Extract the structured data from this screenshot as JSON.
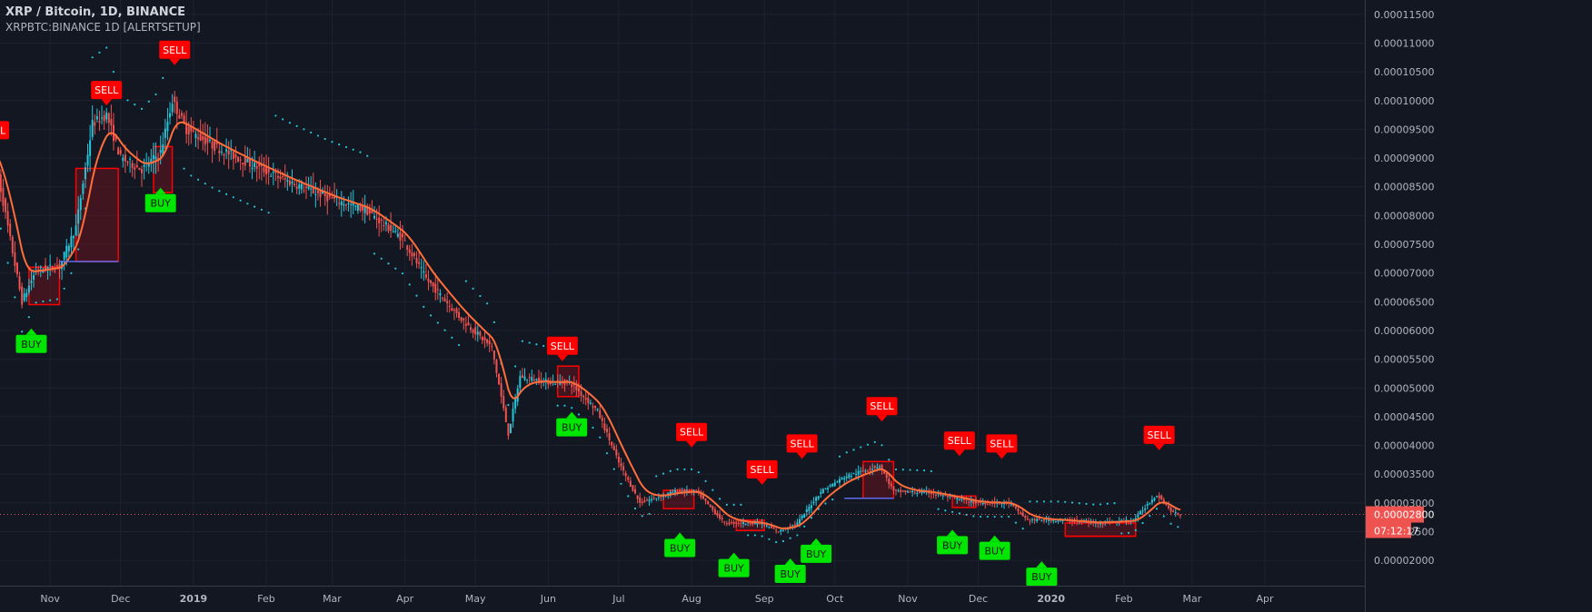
{
  "header": {
    "title": "XRP / Bitcoin, 1D, BINANCE",
    "indicator": "XRPBTC:BINANCE 1D [ALERTSETUP]"
  },
  "colors": {
    "background": "#131722",
    "grid": "#1e2230",
    "axis_text": "#b2b5be",
    "up": "#26c6da",
    "down": "#ef5350",
    "ma": "#ff6d3b",
    "ma_up": "#5b6cf0",
    "sar": "#26c6da",
    "buy": "#00e600",
    "sell": "#ff0000",
    "price_tag": "#ef5350"
  },
  "chart_data": {
    "type": "candlestick",
    "x_ticks": [
      "Nov",
      "Dec",
      "2019",
      "Feb",
      "Mar",
      "Apr",
      "May",
      "Jun",
      "Jul",
      "Aug",
      "Sep",
      "Oct",
      "Nov",
      "Dec",
      "2020",
      "Feb",
      "Mar",
      "Apr"
    ],
    "y_ticks": [
      "0.00011500",
      "0.00011000",
      "0.00010500",
      "0.00010000",
      "0.00009500",
      "0.00009000",
      "0.00008500",
      "0.00008000",
      "0.00007500",
      "0.00007000",
      "0.00006500",
      "0.00006000",
      "0.00005500",
      "0.00005000",
      "0.00004500",
      "0.00004000",
      "0.00003500",
      "0.00003000",
      "0.00002500",
      "0.00002000"
    ],
    "ylim": [
      1.56e-05,
      0.0001175
    ],
    "current_price": {
      "label": "0.00002800",
      "countdown": "07:12:17",
      "value": 2.8e-05
    },
    "trend": [
      [
        "2018-10-08",
        9.1e-05
      ],
      [
        "2018-10-20",
        6.5e-05
      ],
      [
        "2018-10-26",
        7.05e-05
      ],
      [
        "2018-11-05",
        7.12e-05
      ],
      [
        "2018-11-12",
        7.8e-05
      ],
      [
        "2018-11-19",
        9.6e-05
      ],
      [
        "2018-11-25",
        9.75e-05
      ],
      [
        "2018-12-01",
        9e-05
      ],
      [
        "2018-12-10",
        8.8e-05
      ],
      [
        "2018-12-18",
        9.1e-05
      ],
      [
        "2018-12-23",
        0.0001
      ],
      [
        "2018-12-29",
        9.5e-05
      ],
      [
        "2019-01-10",
        9.2e-05
      ],
      [
        "2019-01-25",
        8.9e-05
      ],
      [
        "2019-02-10",
        8.6e-05
      ],
      [
        "2019-02-28",
        8.3e-05
      ],
      [
        "2019-03-15",
        8.1e-05
      ],
      [
        "2019-03-31",
        7.6e-05
      ],
      [
        "2019-04-10",
        6.9e-05
      ],
      [
        "2019-04-25",
        6.2e-05
      ],
      [
        "2019-05-08",
        5.7e-05
      ],
      [
        "2019-05-15",
        4.2e-05
      ],
      [
        "2019-05-20",
        5.2e-05
      ],
      [
        "2019-06-01",
        5.1e-05
      ],
      [
        "2019-06-10",
        5.1e-05
      ],
      [
        "2019-06-22",
        4.6e-05
      ],
      [
        "2019-07-01",
        3.7e-05
      ],
      [
        "2019-07-10",
        3e-05
      ],
      [
        "2019-07-25",
        3.2e-05
      ],
      [
        "2019-08-03",
        3.2e-05
      ],
      [
        "2019-08-15",
        2.65e-05
      ],
      [
        "2019-08-30",
        2.65e-05
      ],
      [
        "2019-09-07",
        2.5e-05
      ],
      [
        "2019-09-15",
        2.65e-05
      ],
      [
        "2019-09-25",
        3.2e-05
      ],
      [
        "2019-10-05",
        3.45e-05
      ],
      [
        "2019-10-20",
        3.65e-05
      ],
      [
        "2019-10-26",
        3.2e-05
      ],
      [
        "2019-11-10",
        3.18e-05
      ],
      [
        "2019-11-30",
        3e-05
      ],
      [
        "2019-12-14",
        3e-05
      ],
      [
        "2019-12-22",
        2.7e-05
      ],
      [
        "2020-01-05",
        2.7e-05
      ],
      [
        "2020-01-20",
        2.65e-05
      ],
      [
        "2020-02-05",
        2.7e-05
      ],
      [
        "2020-02-15",
        3.15e-05
      ],
      [
        "2020-02-22",
        2.82e-05
      ],
      [
        "2020-02-25",
        2.8e-05
      ]
    ],
    "signals": [
      {
        "type": "SELL",
        "label": "SELL",
        "date": "2018-10-08",
        "price": 9.2e-05
      },
      {
        "type": "BUY",
        "label": "BUY",
        "date": "2018-10-24",
        "price": 6.05e-05
      },
      {
        "type": "SELL",
        "label": "SELL",
        "date": "2018-11-25",
        "price": 9.9e-05
      },
      {
        "type": "BUY",
        "label": "BUY",
        "date": "2018-12-18",
        "price": 8.5e-05
      },
      {
        "type": "SELL",
        "label": "SELL",
        "date": "2018-12-24",
        "price": 0.000106
      },
      {
        "type": "SELL",
        "label": "SELL",
        "date": "2019-06-07",
        "price": 5.45e-05
      },
      {
        "type": "BUY",
        "label": "BUY",
        "date": "2019-06-11",
        "price": 4.6e-05
      },
      {
        "type": "SELL",
        "label": "SELL",
        "date": "2019-08-01",
        "price": 3.95e-05
      },
      {
        "type": "BUY",
        "label": "BUY",
        "date": "2019-07-27",
        "price": 2.5e-05
      },
      {
        "type": "BUY",
        "label": "BUY",
        "date": "2019-08-19",
        "price": 2.15e-05
      },
      {
        "type": "SELL",
        "label": "SELL",
        "date": "2019-08-31",
        "price": 3.3e-05
      },
      {
        "type": "BUY",
        "label": "BUY",
        "date": "2019-09-12",
        "price": 2.05e-05
      },
      {
        "type": "SELL",
        "label": "SELL",
        "date": "2019-09-17",
        "price": 3.75e-05
      },
      {
        "type": "BUY",
        "label": "BUY",
        "date": "2019-09-23",
        "price": 2.4e-05
      },
      {
        "type": "SELL",
        "label": "SELL",
        "date": "2019-10-21",
        "price": 4.4e-05
      },
      {
        "type": "BUY",
        "label": "BUY",
        "date": "2019-11-20",
        "price": 2.55e-05
      },
      {
        "type": "SELL",
        "label": "SELL",
        "date": "2019-11-23",
        "price": 3.8e-05
      },
      {
        "type": "BUY",
        "label": "BUY",
        "date": "2019-12-08",
        "price": 2.45e-05
      },
      {
        "type": "SELL",
        "label": "SELL",
        "date": "2019-12-11",
        "price": 3.75e-05
      },
      {
        "type": "BUY",
        "label": "BUY",
        "date": "2019-12-28",
        "price": 2e-05
      },
      {
        "type": "SELL",
        "label": "SELL",
        "date": "2020-02-16",
        "price": 3.9e-05
      }
    ],
    "boxes": [
      {
        "from": "2018-10-23",
        "to": "2018-11-05",
        "low": 6.45e-05,
        "high": 7.1e-05
      },
      {
        "from": "2018-11-12",
        "to": "2018-11-30",
        "low": 7.2e-05,
        "high": 8.82e-05
      },
      {
        "from": "2018-12-15",
        "to": "2018-12-23",
        "low": 8.4e-05,
        "high": 9.2e-05
      },
      {
        "from": "2019-06-05",
        "to": "2019-06-14",
        "low": 4.85e-05,
        "high": 5.38e-05
      },
      {
        "from": "2019-07-20",
        "to": "2019-08-02",
        "low": 2.9e-05,
        "high": 3.22e-05
      },
      {
        "from": "2019-08-20",
        "to": "2019-09-01",
        "low": 2.52e-05,
        "high": 2.7e-05
      },
      {
        "from": "2019-10-13",
        "to": "2019-10-26",
        "low": 3.08e-05,
        "high": 3.72e-05
      },
      {
        "from": "2019-11-20",
        "to": "2019-11-30",
        "low": 2.92e-05,
        "high": 3.12e-05
      },
      {
        "from": "2020-01-07",
        "to": "2020-02-06",
        "low": 2.42e-05,
        "high": 2.65e-05
      }
    ],
    "level_lines": [
      {
        "from": "2018-11-05",
        "to": "2018-11-30",
        "value": 7.2e-05,
        "color": "#5b6cf0"
      },
      {
        "from": "2019-10-05",
        "to": "2019-10-26",
        "value": 3.08e-05,
        "color": "#5b6cf0"
      },
      {
        "from": "2020-01-07",
        "to": "2020-02-06",
        "value": 2.42e-05,
        "color": "#ff0000"
      }
    ]
  }
}
